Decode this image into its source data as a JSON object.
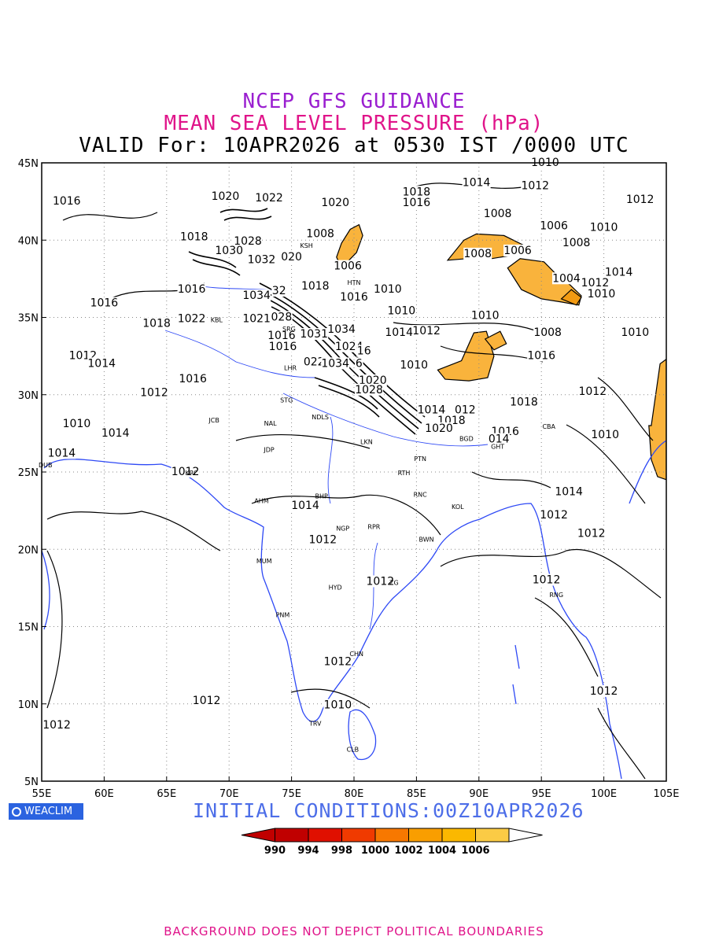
{
  "header": {
    "line1": "NCEP GFS GUIDANCE",
    "line2": "MEAN SEA LEVEL PRESSURE (hPa)",
    "line3": "VALID For: 10APR2026 at 0530 IST /0000 UTC"
  },
  "map": {
    "lon_range": [
      55,
      105
    ],
    "lat_range": [
      5,
      45
    ],
    "lon_ticks": [
      "55E",
      "60E",
      "65E",
      "70E",
      "75E",
      "80E",
      "85E",
      "90E",
      "95E",
      "100E",
      "105E"
    ],
    "lat_ticks": [
      "45N",
      "40N",
      "35N",
      "30N",
      "25N",
      "20N",
      "15N",
      "10N",
      "5N"
    ],
    "gridlines": "dotted",
    "coastline_color": "#2e49f5",
    "contour_color": "#000000",
    "isobar_labels": [
      {
        "text": "1016",
        "lon": 57.0,
        "lat": 42.3
      },
      {
        "text": "1020",
        "lon": 69.7,
        "lat": 42.6
      },
      {
        "text": "1022",
        "lon": 73.2,
        "lat": 42.5
      },
      {
        "text": "1020",
        "lon": 78.5,
        "lat": 42.2
      },
      {
        "text": "1018",
        "lon": 85.0,
        "lat": 42.9
      },
      {
        "text": "1016",
        "lon": 85.0,
        "lat": 42.2
      },
      {
        "text": "1014",
        "lon": 89.8,
        "lat": 43.5
      },
      {
        "text": "1012",
        "lon": 94.5,
        "lat": 43.3
      },
      {
        "text": "1010",
        "lon": 95.3,
        "lat": 44.8
      },
      {
        "text": "1012",
        "lon": 102.9,
        "lat": 42.4
      },
      {
        "text": "1008",
        "lon": 91.5,
        "lat": 41.5
      },
      {
        "text": "1006",
        "lon": 96.0,
        "lat": 40.7
      },
      {
        "text": "1010",
        "lon": 100.0,
        "lat": 40.6
      },
      {
        "text": "1008",
        "lon": 77.3,
        "lat": 40.2
      },
      {
        "text": "1008",
        "lon": 89.9,
        "lat": 38.9
      },
      {
        "text": "1006",
        "lon": 93.1,
        "lat": 39.1
      },
      {
        "text": "1008",
        "lon": 97.8,
        "lat": 39.6
      },
      {
        "text": "1006",
        "lon": 79.5,
        "lat": 38.1
      },
      {
        "text": "1004",
        "lon": 97.0,
        "lat": 37.3
      },
      {
        "text": "1012",
        "lon": 99.3,
        "lat": 37.0
      },
      {
        "text": "1014",
        "lon": 101.2,
        "lat": 37.7
      },
      {
        "text": "1010",
        "lon": 99.8,
        "lat": 36.3
      },
      {
        "text": "1018",
        "lon": 67.2,
        "lat": 40.0
      },
      {
        "text": "1028",
        "lon": 71.5,
        "lat": 39.7
      },
      {
        "text": "1030",
        "lon": 70.0,
        "lat": 39.1
      },
      {
        "text": "1032",
        "lon": 72.6,
        "lat": 38.5
      },
      {
        "text": "020",
        "lon": 75.0,
        "lat": 38.7
      },
      {
        "text": "1016",
        "lon": 67.0,
        "lat": 36.6
      },
      {
        "text": "1034",
        "lon": 72.2,
        "lat": 36.2
      },
      {
        "text": "32",
        "lon": 74.0,
        "lat": 36.5
      },
      {
        "text": "1018",
        "lon": 76.9,
        "lat": 36.8
      },
      {
        "text": "1016",
        "lon": 80.0,
        "lat": 36.1
      },
      {
        "text": "1010",
        "lon": 82.7,
        "lat": 36.6
      },
      {
        "text": "1016",
        "lon": 60.0,
        "lat": 35.7
      },
      {
        "text": "1022",
        "lon": 67.0,
        "lat": 34.7
      },
      {
        "text": "1018",
        "lon": 64.2,
        "lat": 34.4
      },
      {
        "text": "1021",
        "lon": 72.2,
        "lat": 34.7
      },
      {
        "text": "028",
        "lon": 74.2,
        "lat": 34.8
      },
      {
        "text": "1010",
        "lon": 83.8,
        "lat": 35.2
      },
      {
        "text": "1012",
        "lon": 85.8,
        "lat": 33.9
      },
      {
        "text": "1014",
        "lon": 83.6,
        "lat": 33.8
      },
      {
        "text": "1010",
        "lon": 90.5,
        "lat": 34.9
      },
      {
        "text": "1008",
        "lon": 95.5,
        "lat": 33.8
      },
      {
        "text": "1010",
        "lon": 102.5,
        "lat": 33.8
      },
      {
        "text": "1016",
        "lon": 74.2,
        "lat": 33.6
      },
      {
        "text": "1031",
        "lon": 76.8,
        "lat": 33.7
      },
      {
        "text": "1034",
        "lon": 79.0,
        "lat": 34.0
      },
      {
        "text": "1024",
        "lon": 79.6,
        "lat": 32.9
      },
      {
        "text": "16",
        "lon": 80.8,
        "lat": 32.6
      },
      {
        "text": "1016",
        "lon": 74.3,
        "lat": 32.9
      },
      {
        "text": "1012",
        "lon": 58.3,
        "lat": 32.3
      },
      {
        "text": "1014",
        "lon": 59.8,
        "lat": 31.8
      },
      {
        "text": "1016",
        "lon": 95.0,
        "lat": 32.3
      },
      {
        "text": "022",
        "lon": 76.8,
        "lat": 31.9
      },
      {
        "text": "1034",
        "lon": 78.5,
        "lat": 31.8
      },
      {
        "text": "6",
        "lon": 80.4,
        "lat": 31.8
      },
      {
        "text": "1010",
        "lon": 84.8,
        "lat": 31.7
      },
      {
        "text": "1016",
        "lon": 67.1,
        "lat": 30.8
      },
      {
        "text": "1020",
        "lon": 81.5,
        "lat": 30.7
      },
      {
        "text": "1028",
        "lon": 81.2,
        "lat": 30.1
      },
      {
        "text": "1012",
        "lon": 64.0,
        "lat": 29.9
      },
      {
        "text": "1012",
        "lon": 99.1,
        "lat": 30.0
      },
      {
        "text": "1018",
        "lon": 93.6,
        "lat": 29.3
      },
      {
        "text": "1014",
        "lon": 86.2,
        "lat": 28.8
      },
      {
        "text": "012",
        "lon": 88.9,
        "lat": 28.8
      },
      {
        "text": "1018",
        "lon": 87.8,
        "lat": 28.1
      },
      {
        "text": "1020",
        "lon": 86.8,
        "lat": 27.6
      },
      {
        "text": "1016",
        "lon": 92.1,
        "lat": 27.4
      },
      {
        "text": "1010",
        "lon": 57.8,
        "lat": 27.9
      },
      {
        "text": "1014",
        "lon": 60.9,
        "lat": 27.3
      },
      {
        "text": "1010",
        "lon": 100.1,
        "lat": 27.2
      },
      {
        "text": "014",
        "lon": 91.6,
        "lat": 26.9
      },
      {
        "text": "1014",
        "lon": 56.6,
        "lat": 26.0
      },
      {
        "text": "1012",
        "lon": 66.5,
        "lat": 24.8
      },
      {
        "text": "1014",
        "lon": 97.2,
        "lat": 23.5
      },
      {
        "text": "1012",
        "lon": 96.0,
        "lat": 22.0
      },
      {
        "text": "1014",
        "lon": 76.1,
        "lat": 22.6
      },
      {
        "text": "1012",
        "lon": 99.0,
        "lat": 20.8
      },
      {
        "text": "1012",
        "lon": 77.5,
        "lat": 20.4
      },
      {
        "text": "1012",
        "lon": 82.1,
        "lat": 17.7
      },
      {
        "text": "1012",
        "lon": 95.4,
        "lat": 17.8
      },
      {
        "text": "1012",
        "lon": 78.7,
        "lat": 12.5
      },
      {
        "text": "1012",
        "lon": 100.0,
        "lat": 10.6
      },
      {
        "text": "1012",
        "lon": 68.2,
        "lat": 10.0
      },
      {
        "text": "1010",
        "lon": 78.7,
        "lat": 9.7
      },
      {
        "text": "1012",
        "lon": 56.2,
        "lat": 8.4
      }
    ],
    "station_labels": [
      {
        "text": "KSH",
        "lon": 76.2,
        "lat": 39.5
      },
      {
        "text": "HTN",
        "lon": 80.0,
        "lat": 37.1
      },
      {
        "text": "KBL",
        "lon": 69.0,
        "lat": 34.7
      },
      {
        "text": "SRG",
        "lon": 74.8,
        "lat": 34.1
      },
      {
        "text": "LHR",
        "lon": 74.9,
        "lat": 31.6
      },
      {
        "text": "STG",
        "lon": 74.6,
        "lat": 29.5
      },
      {
        "text": "NDLS",
        "lon": 77.3,
        "lat": 28.4
      },
      {
        "text": "JCB",
        "lon": 68.8,
        "lat": 28.2
      },
      {
        "text": "NAL",
        "lon": 73.3,
        "lat": 28.0
      },
      {
        "text": "JDP",
        "lon": 73.2,
        "lat": 26.3
      },
      {
        "text": "LKN",
        "lon": 81.0,
        "lat": 26.8
      },
      {
        "text": "PTN",
        "lon": 85.3,
        "lat": 25.7
      },
      {
        "text": "DUB",
        "lon": 55.3,
        "lat": 25.3
      },
      {
        "text": "KRC",
        "lon": 67.0,
        "lat": 24.8
      },
      {
        "text": "RTH",
        "lon": 84.0,
        "lat": 24.8
      },
      {
        "text": "AHM",
        "lon": 72.6,
        "lat": 23.0
      },
      {
        "text": "BHP",
        "lon": 77.4,
        "lat": 23.3
      },
      {
        "text": "RNC",
        "lon": 85.3,
        "lat": 23.4
      },
      {
        "text": "KOL",
        "lon": 88.3,
        "lat": 22.6
      },
      {
        "text": "NGP",
        "lon": 79.1,
        "lat": 21.2
      },
      {
        "text": "RPR",
        "lon": 81.6,
        "lat": 21.3
      },
      {
        "text": "BWN",
        "lon": 85.8,
        "lat": 20.5
      },
      {
        "text": "MUM",
        "lon": 72.8,
        "lat": 19.1
      },
      {
        "text": "HYD",
        "lon": 78.5,
        "lat": 17.4
      },
      {
        "text": "ZG",
        "lon": 83.2,
        "lat": 17.7
      },
      {
        "text": "RNG",
        "lon": 96.2,
        "lat": 16.9
      },
      {
        "text": "PNM",
        "lon": 74.3,
        "lat": 15.6
      },
      {
        "text": "CHN",
        "lon": 80.2,
        "lat": 13.1
      },
      {
        "text": "TRV",
        "lon": 76.9,
        "lat": 8.6
      },
      {
        "text": "CLB",
        "lon": 79.9,
        "lat": 6.9
      },
      {
        "text": "CBA",
        "lon": 95.6,
        "lat": 27.8
      },
      {
        "text": "BGD",
        "lon": 89.0,
        "lat": 27.0
      },
      {
        "text": "GHT",
        "lon": 91.5,
        "lat": 26.5
      }
    ],
    "low_pressure_areas_under_1006": [
      {
        "lon": [
          79.0,
          80.2,
          80.7,
          80.4,
          79.7,
          79.0,
          78.6
        ],
        "lat": [
          38.2,
          39.2,
          40.3,
          41.0,
          40.7,
          39.8,
          38.9
        ]
      },
      {
        "lon": [
          87.5,
          88.8,
          89.8,
          92.0,
          93.5,
          92.5,
          91.0,
          89.0,
          87.5
        ],
        "lat": [
          38.7,
          40.0,
          40.4,
          40.3,
          39.7,
          39.0,
          38.8,
          38.8,
          38.7
        ]
      },
      {
        "lon": [
          92.3,
          93.3,
          95.2,
          96.3,
          97.3,
          98.2,
          98.0,
          96.6,
          95.0,
          93.4,
          92.3
        ],
        "lat": [
          38.2,
          38.8,
          38.6,
          37.7,
          37.1,
          36.4,
          35.8,
          36.0,
          36.2,
          36.8,
          38.2
        ]
      },
      {
        "lon": [
          86.7,
          88.6,
          89.6,
          90.6,
          91.2,
          90.7,
          89.2,
          87.3,
          86.7
        ],
        "lat": [
          31.6,
          32.2,
          34.0,
          34.1,
          32.5,
          31.1,
          30.9,
          31.0,
          31.6
        ]
      },
      {
        "lon": [
          90.5,
          91.7,
          92.2,
          91.2,
          90.5
        ],
        "lat": [
          33.6,
          34.1,
          33.3,
          32.9,
          33.6
        ]
      },
      {
        "lon": [
          103.8,
          104.5,
          105.0,
          105.0,
          104.3,
          103.8,
          103.6
        ],
        "lat": [
          28.0,
          32.0,
          32.3,
          24.5,
          24.7,
          25.8,
          28.0
        ]
      }
    ],
    "lowest_pressure_area_under_1004": {
      "lon": [
        96.6,
        97.4,
        98.2,
        97.8,
        96.6
      ],
      "lat": [
        36.2,
        36.8,
        36.3,
        35.8,
        36.2
      ]
    }
  },
  "badge": {
    "icon": "weaclim-logo-icon",
    "label": "WEACLIM"
  },
  "initial_conditions": "INITIAL CONDITIONS:00Z10APR2026",
  "colorbar": {
    "labels": [
      "990",
      "994",
      "998",
      "1000",
      "1002",
      "1004",
      "1006"
    ],
    "colors": [
      "#c00000",
      "#c00000",
      "#e01000",
      "#f03a00",
      "#f77800",
      "#f99e00",
      "#fbb800",
      "#fbcb45",
      "#ffffff"
    ]
  },
  "footer": "BACKGROUND DOES NOT DEPICT POLITICAL BOUNDARIES"
}
